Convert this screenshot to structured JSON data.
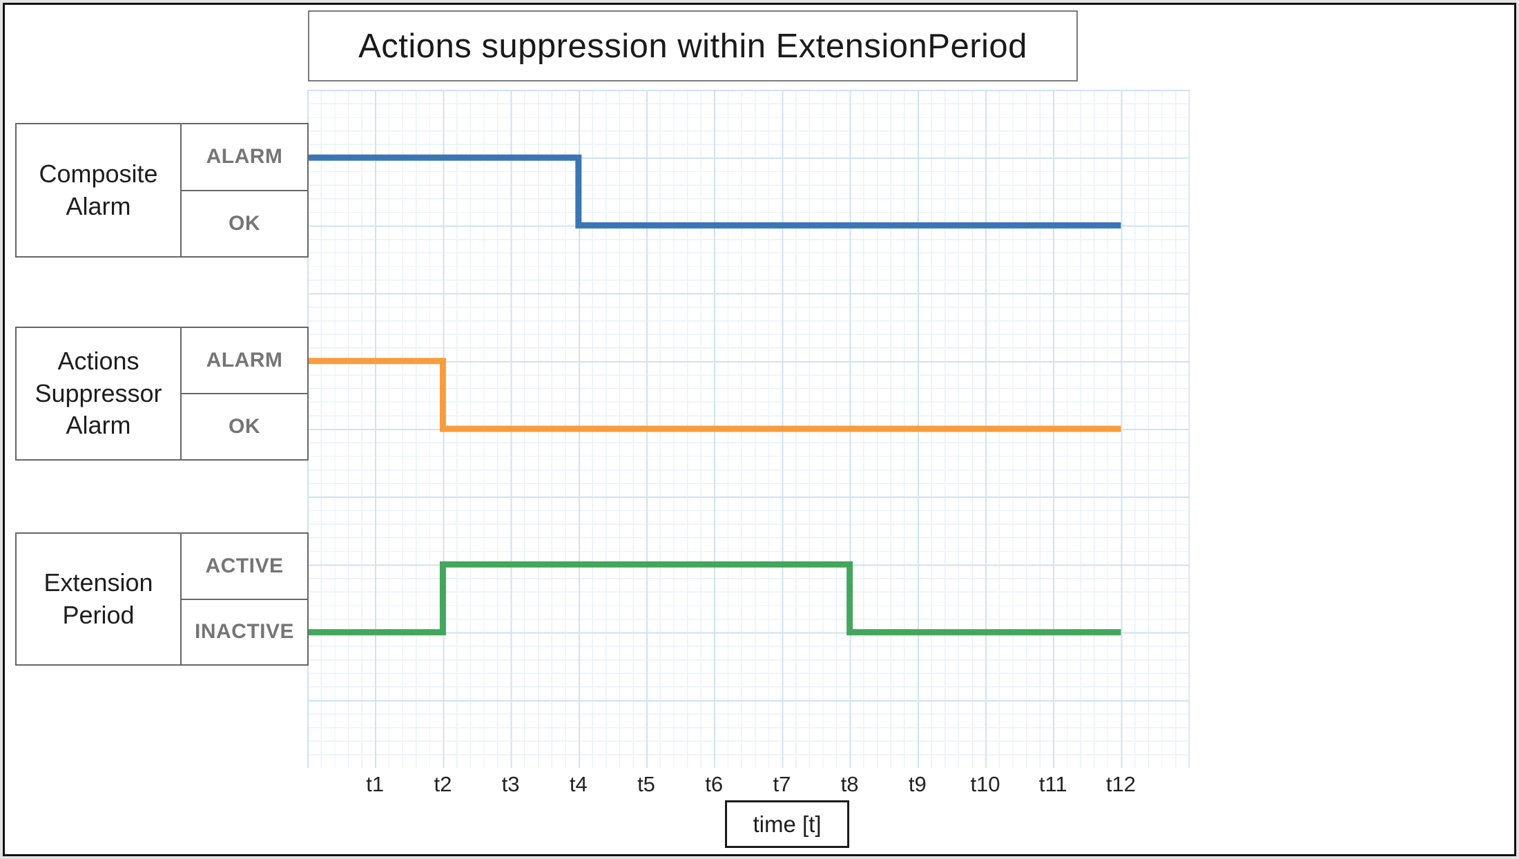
{
  "title": "Actions suppression within ExtensionPeriod",
  "rows": [
    {
      "label": "Composite\nAlarm",
      "state_top": "ALARM",
      "state_bottom": "OK"
    },
    {
      "label": "Actions\nSuppressor\nAlarm",
      "state_top": "ALARM",
      "state_bottom": "OK"
    },
    {
      "label": "Extension\nPeriod",
      "state_top": "ACTIVE",
      "state_bottom": "INACTIVE"
    }
  ],
  "x_axis": {
    "ticks": [
      "t1",
      "t2",
      "t3",
      "t4",
      "t5",
      "t6",
      "t7",
      "t8",
      "t9",
      "t10",
      "t11",
      "t12"
    ],
    "label": "time [t]"
  },
  "colors": {
    "composite_line": "#3B76B4",
    "suppressor_line": "#F79D3E",
    "extension_line": "#44A65C",
    "grid_major": "#CFE2F2",
    "grid_minor": "#E9F1F9",
    "box_border": "#666666",
    "state_text": "#757575"
  },
  "chart_data": {
    "type": "line",
    "subtype": "step-state-timing-diagram",
    "title": "Actions suppression within ExtensionPeriod",
    "xlabel": "time [t]",
    "x_ticks": [
      "t1",
      "t2",
      "t3",
      "t4",
      "t5",
      "t6",
      "t7",
      "t8",
      "t9",
      "t10",
      "t11",
      "t12"
    ],
    "x_range_units": [
      0,
      12
    ],
    "grid": true,
    "legend_position": "left-boxes",
    "series": [
      {
        "name": "Composite Alarm",
        "color": "#3B76B4",
        "states": [
          "ALARM",
          "OK"
        ],
        "steps": [
          [
            0,
            0
          ],
          [
            4,
            1
          ],
          [
            12,
            1
          ]
        ]
      },
      {
        "name": "Actions Suppressor Alarm",
        "color": "#F79D3E",
        "states": [
          "ALARM",
          "OK"
        ],
        "steps": [
          [
            0,
            0
          ],
          [
            2,
            1
          ],
          [
            12,
            1
          ]
        ]
      },
      {
        "name": "Extension Period",
        "color": "#44A65C",
        "states": [
          "ACTIVE",
          "INACTIVE"
        ],
        "steps": [
          [
            0,
            1
          ],
          [
            2,
            0
          ],
          [
            8,
            1
          ],
          [
            12,
            1
          ]
        ]
      }
    ]
  }
}
